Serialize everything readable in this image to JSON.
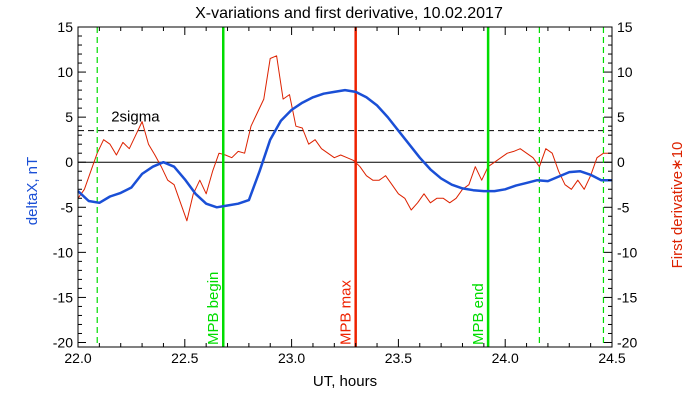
{
  "chart_data": {
    "type": "line",
    "title": "X-variations and first derivative, 10.02.2017",
    "xlabel": "UT, hours",
    "ylabel_left": "deltaX, nT",
    "ylabel_right": "First derivative∗10",
    "xlim": [
      22.0,
      24.5
    ],
    "ylim": [
      -20.5,
      15
    ],
    "x_ticks": [
      22.0,
      22.5,
      23.0,
      23.5,
      24.0,
      24.5
    ],
    "x_tick_labels": [
      "22.0",
      "22.5",
      "23.0",
      "23.5",
      "24.0",
      "24.5"
    ],
    "y_ticks": [
      15,
      10,
      5,
      0,
      -5,
      -10,
      -15,
      -20
    ],
    "y_tick_labels": [
      "15",
      "10",
      "5",
      "0",
      "-5",
      "-10",
      "-15",
      "-20"
    ],
    "grid": false,
    "threshold": {
      "label": "2sigma",
      "value": 3.5,
      "style": "dashed",
      "color": "#000000"
    },
    "zero_line": {
      "value": 0,
      "color": "#000000"
    },
    "vertical_markers": [
      {
        "x": 22.09,
        "label": "",
        "color": "#00dd00",
        "style": "dashed"
      },
      {
        "x": 22.68,
        "label": "MPB begin",
        "color": "#00dd00",
        "style": "solid"
      },
      {
        "x": 23.3,
        "label": "MPB max",
        "color": "#ee2200",
        "style": "solid"
      },
      {
        "x": 23.92,
        "label": "MPB end",
        "color": "#00dd00",
        "style": "solid"
      },
      {
        "x": 24.16,
        "label": "",
        "color": "#00dd00",
        "style": "dashed"
      },
      {
        "x": 24.46,
        "label": "",
        "color": "#00dd00",
        "style": "dashed"
      }
    ],
    "series": [
      {
        "color": "#1a4fd6",
        "axis": "left",
        "x": [
          22.0,
          22.05,
          22.1,
          22.15,
          22.2,
          22.25,
          22.3,
          22.35,
          22.4,
          22.45,
          22.5,
          22.55,
          22.6,
          22.65,
          22.7,
          22.75,
          22.8,
          22.85,
          22.9,
          22.95,
          23.0,
          23.05,
          23.1,
          23.15,
          23.2,
          23.25,
          23.3,
          23.35,
          23.4,
          23.45,
          23.5,
          23.55,
          23.6,
          23.65,
          23.7,
          23.75,
          23.8,
          23.85,
          23.9,
          23.95,
          24.0,
          24.05,
          24.1,
          24.15,
          24.2,
          24.25,
          24.3,
          24.35,
          24.4,
          24.45,
          24.5
        ],
        "values": [
          -3.2,
          -4.3,
          -4.5,
          -3.8,
          -3.4,
          -2.8,
          -1.3,
          -0.5,
          0.0,
          -0.5,
          -1.9,
          -3.5,
          -4.6,
          -5.0,
          -4.8,
          -4.6,
          -4.2,
          -1.0,
          2.5,
          4.6,
          5.8,
          6.6,
          7.2,
          7.6,
          7.8,
          8.0,
          7.8,
          7.2,
          6.3,
          5.0,
          3.5,
          2.0,
          0.5,
          -0.8,
          -1.8,
          -2.5,
          -2.9,
          -3.1,
          -3.2,
          -3.2,
          -3.0,
          -2.6,
          -2.3,
          -2.0,
          -2.1,
          -1.6,
          -1.1,
          -1.0,
          -1.4,
          -2.0,
          -2.0
        ]
      },
      {
        "color": "#dd2200",
        "axis": "right",
        "x": [
          22.0,
          22.03,
          22.06,
          22.09,
          22.12,
          22.15,
          22.18,
          22.21,
          22.24,
          22.27,
          22.3,
          22.33,
          22.36,
          22.39,
          22.42,
          22.45,
          22.48,
          22.51,
          22.54,
          22.57,
          22.6,
          22.63,
          22.66,
          22.69,
          22.72,
          22.75,
          22.78,
          22.81,
          22.84,
          22.87,
          22.9,
          22.93,
          22.96,
          22.99,
          23.02,
          23.05,
          23.08,
          23.11,
          23.14,
          23.17,
          23.2,
          23.23,
          23.26,
          23.29,
          23.32,
          23.35,
          23.38,
          23.41,
          23.44,
          23.47,
          23.5,
          23.53,
          23.56,
          23.59,
          23.62,
          23.65,
          23.68,
          23.71,
          23.74,
          23.77,
          23.8,
          23.83,
          23.86,
          23.89,
          23.92,
          23.95,
          23.98,
          24.01,
          24.04,
          24.07,
          24.1,
          24.13,
          24.16,
          24.19,
          24.22,
          24.25,
          24.28,
          24.31,
          24.34,
          24.37,
          24.4,
          24.43,
          24.46,
          24.5
        ],
        "values": [
          -4.0,
          -3.0,
          -1.0,
          1.0,
          2.5,
          2.0,
          0.8,
          2.2,
          1.5,
          3.0,
          4.5,
          2.0,
          0.8,
          -0.5,
          -2.0,
          -2.5,
          -4.5,
          -6.5,
          -3.5,
          -2.0,
          -3.5,
          -1.0,
          1.0,
          0.8,
          0.5,
          1.2,
          1.0,
          4.0,
          5.5,
          7.0,
          11.5,
          11.8,
          7.0,
          7.5,
          4.0,
          3.8,
          2.0,
          2.5,
          1.5,
          1.0,
          0.5,
          0.8,
          0.5,
          0.2,
          -0.5,
          -1.5,
          -2.0,
          -2.0,
          -1.5,
          -2.5,
          -3.5,
          -4.0,
          -5.3,
          -4.5,
          -3.5,
          -4.5,
          -4.0,
          -4.0,
          -4.5,
          -4.0,
          -3.0,
          -2.5,
          -0.5,
          -2.0,
          -0.5,
          0.0,
          0.5,
          1.0,
          1.2,
          1.5,
          1.0,
          0.5,
          -0.5,
          1.5,
          1.0,
          -1.0,
          -2.5,
          -3.0,
          -2.0,
          -3.0,
          -1.5,
          0.5,
          1.0,
          1.0
        ]
      }
    ]
  }
}
